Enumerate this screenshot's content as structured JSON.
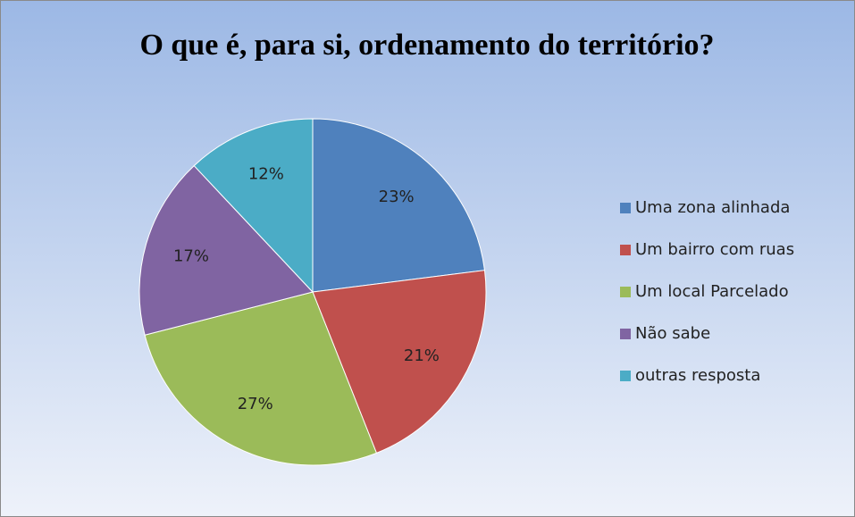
{
  "chart_data": {
    "type": "pie",
    "title": "O que é, para si, ordenamento do território?",
    "categories": [
      "Uma zona alinhada",
      "Um bairro com ruas",
      "Um local Parcelado",
      "Não sabe",
      "outras resposta"
    ],
    "values": [
      23,
      21,
      27,
      17,
      12
    ],
    "value_labels": [
      "23%",
      "21%",
      "27%",
      "17%",
      "12%"
    ],
    "colors": [
      "#4f81bd",
      "#c0504d",
      "#9bbb59",
      "#8064a2",
      "#4bacc6"
    ],
    "legend": "right"
  }
}
